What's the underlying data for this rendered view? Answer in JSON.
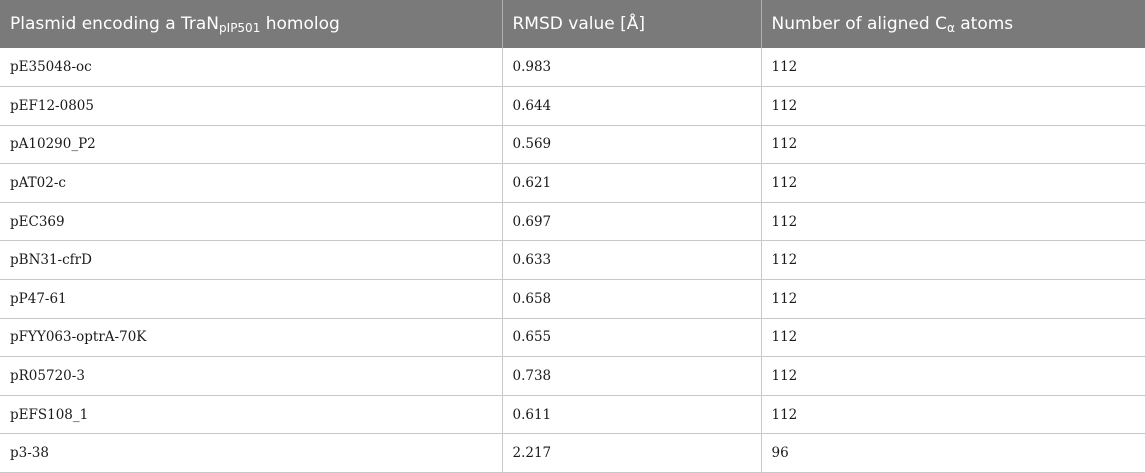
{
  "table": {
    "headers": [
      {
        "main": "Plasmid encoding a TraN",
        "sub": "pIP501",
        "tail": " homolog"
      },
      {
        "main": "RMSD value [Å]",
        "sub": "",
        "tail": ""
      },
      {
        "main": "Number of aligned C",
        "sub": "α",
        "tail": " atoms"
      }
    ],
    "rows": [
      [
        "pE35048-oc",
        "0.983",
        "112"
      ],
      [
        "pEF12-0805",
        "0.644",
        "112"
      ],
      [
        "pA10290_P2",
        "0.569",
        "112"
      ],
      [
        "pAT02-c",
        "0.621",
        "112"
      ],
      [
        "pEC369",
        "0.697",
        "112"
      ],
      [
        "pBN31-cfrD",
        "0.633",
        "112"
      ],
      [
        "pP47-61",
        "0.658",
        "112"
      ],
      [
        "pFYY063-optrA-70K",
        "0.655",
        "112"
      ],
      [
        "pR05720-3",
        "0.738",
        "112"
      ],
      [
        "pEFS108_1",
        "0.611",
        "112"
      ],
      [
        "p3-38",
        "2.217",
        "96"
      ]
    ]
  },
  "colors": {
    "header_bg": "#7a7a7a",
    "header_text": "#ffffff",
    "row_border": "#c8c8c8"
  }
}
